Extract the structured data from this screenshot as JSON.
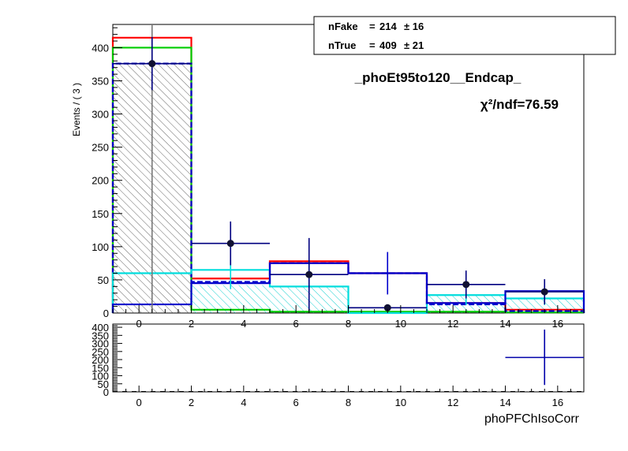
{
  "chart_data": [
    {
      "type": "bar",
      "panel": "main",
      "title": "_phoEt95to120__Endcap_",
      "chi2_label": "χ²/ndf=76.59",
      "ylabel": "Events / ( 3 )",
      "xlim": [
        -1,
        17
      ],
      "ylim": [
        0,
        435
      ],
      "x_ticks": [
        0,
        2,
        4,
        6,
        8,
        10,
        12,
        14,
        16
      ],
      "y_ticks": [
        0,
        50,
        100,
        150,
        200,
        250,
        300,
        350,
        400
      ],
      "bin_edges": [
        -1,
        2,
        5,
        8,
        11,
        14,
        17
      ],
      "legend": {
        "position": "top-right",
        "entries": [
          {
            "label": "nFake",
            "value": "214",
            "pm": "± 16"
          },
          {
            "label": "nTrue",
            "value": "409",
            "pm": "± 21"
          }
        ]
      },
      "series": [
        {
          "style": "step",
          "color": "#ff0000",
          "values": [
            415,
            52,
            78,
            60,
            15,
            5
          ]
        },
        {
          "style": "step",
          "color": "#00cc00",
          "values": [
            400,
            5,
            2,
            2,
            2,
            1
          ]
        },
        {
          "style": "step",
          "color": "#0000cc",
          "dashed": true,
          "values": [
            376,
            47,
            75,
            60,
            13,
            3
          ]
        },
        {
          "style": "step",
          "color": "#00dddd",
          "values": [
            60,
            65,
            40,
            0,
            27,
            22
          ]
        },
        {
          "style": "hatched",
          "color": "#555555",
          "values": [
            376,
            0,
            0,
            0,
            0,
            0
          ]
        },
        {
          "style": "hatched",
          "color": "#00cccc",
          "values": [
            0,
            42,
            40,
            0,
            27,
            22
          ]
        },
        {
          "style": "step",
          "color": "#0000cc",
          "values": [
            13,
            45,
            75,
            60,
            15,
            33
          ]
        }
      ],
      "points": [
        {
          "x": 0.5,
          "y": 376,
          "yerr": 40,
          "color": "#111133"
        },
        {
          "x": 3.5,
          "y": 105,
          "yerr": 33,
          "color": "#111133"
        },
        {
          "x": 6.5,
          "y": 58,
          "yerr": 55,
          "color": "#111133"
        },
        {
          "x": 9.5,
          "y": 8,
          "yerr": 0,
          "color": "#111133"
        },
        {
          "x": 12.5,
          "y": 43,
          "yerr": 21,
          "color": "#111133"
        },
        {
          "x": 15.5,
          "y": 32,
          "yerr": 19,
          "color": "#111133"
        }
      ],
      "extra_errorbars": [
        {
          "x": 0.5,
          "y": 376,
          "yerr": 0,
          "ytop": 435,
          "color": "#777777"
        },
        {
          "x": 3.5,
          "y": 58,
          "yerr": 22,
          "color": "#00dddd"
        },
        {
          "x": 6.5,
          "y": 58,
          "yerr": 22,
          "color": "#00dddd"
        },
        {
          "x": 9.5,
          "y": 60,
          "yerr": 32,
          "color": "#0000cc"
        },
        {
          "x": 12.5,
          "y": 25,
          "yerr": 13,
          "color": "#00dddd"
        },
        {
          "x": 15.5,
          "y": 25,
          "yerr": 13,
          "color": "#00dddd"
        }
      ]
    },
    {
      "type": "scatter",
      "panel": "ratio",
      "xlabel": "phoPFChIsoCorr",
      "xlim": [
        -1,
        17
      ],
      "ylim": [
        0,
        420
      ],
      "x_ticks": [
        0,
        2,
        4,
        6,
        8,
        10,
        12,
        14,
        16
      ],
      "y_ticks": [
        0,
        50,
        100,
        150,
        200,
        250,
        300,
        350,
        400
      ],
      "points": [
        {
          "x": 15.5,
          "y": 213,
          "xerr": 1.5,
          "yerr_low": 170,
          "yerr_high": 173,
          "color": "#0000aa"
        }
      ]
    }
  ]
}
